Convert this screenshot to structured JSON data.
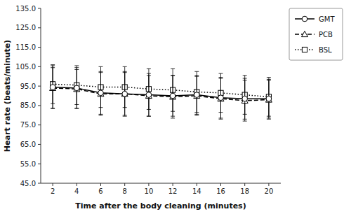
{
  "chart_data": {
    "type": "line",
    "xlabel": "Time after the body cleaning (minutes)",
    "ylabel": "Heart rate (beats/minute)",
    "x": [
      2,
      4,
      6,
      8,
      10,
      12,
      14,
      16,
      18,
      20
    ],
    "series": [
      {
        "name": "GMT",
        "color": "#000000",
        "marker": "circle",
        "line_style": "solid",
        "values": [
          94.5,
          94.0,
          91.5,
          91.0,
          90.5,
          90.0,
          90.5,
          89.0,
          88.5,
          88.5
        ],
        "errors": [
          11.0,
          10.5,
          11.0,
          11.5,
          11.0,
          10.5,
          10.0,
          10.5,
          10.5,
          10.0
        ]
      },
      {
        "name": "PCB",
        "color": "#000000",
        "marker": "triangle",
        "line_style": "dashed",
        "values": [
          94.0,
          93.5,
          91.0,
          91.0,
          90.0,
          89.5,
          90.0,
          88.5,
          87.5,
          88.0
        ],
        "errors": [
          10.5,
          10.0,
          11.0,
          11.0,
          10.5,
          11.0,
          10.0,
          10.5,
          10.5,
          10.0
        ]
      },
      {
        "name": "BSL",
        "color": "#000000",
        "marker": "square",
        "line_style": "dotted",
        "values": [
          96.0,
          95.5,
          94.5,
          94.5,
          93.5,
          93.0,
          92.0,
          91.5,
          90.5,
          89.5
        ],
        "errors": [
          10.0,
          10.0,
          10.5,
          10.5,
          10.5,
          11.0,
          10.5,
          10.0,
          10.0,
          10.0
        ]
      }
    ],
    "xlim": [
      1,
      21
    ],
    "xticks": [
      2,
      4,
      6,
      8,
      10,
      12,
      14,
      16,
      18,
      20
    ],
    "ylim": [
      45.0,
      135.0
    ],
    "yticks": [
      {
        "value": 45.0,
        "label": "45.0"
      },
      {
        "value": 55.0,
        "label": "55.0"
      },
      {
        "value": 65.0,
        "label": "65.0"
      },
      {
        "value": 75.0,
        "label": "75.0"
      },
      {
        "value": 85.0,
        "label": "85.0"
      },
      {
        "value": 95.0,
        "label": "95.0"
      },
      {
        "value": 105.0,
        "label": "105.0"
      },
      {
        "value": 115.0,
        "label": "115.0"
      },
      {
        "value": 125.0,
        "label": "125.0"
      },
      {
        "value": 135.0,
        "label": "135.0"
      }
    ],
    "grid": false,
    "legend": "upper right"
  }
}
